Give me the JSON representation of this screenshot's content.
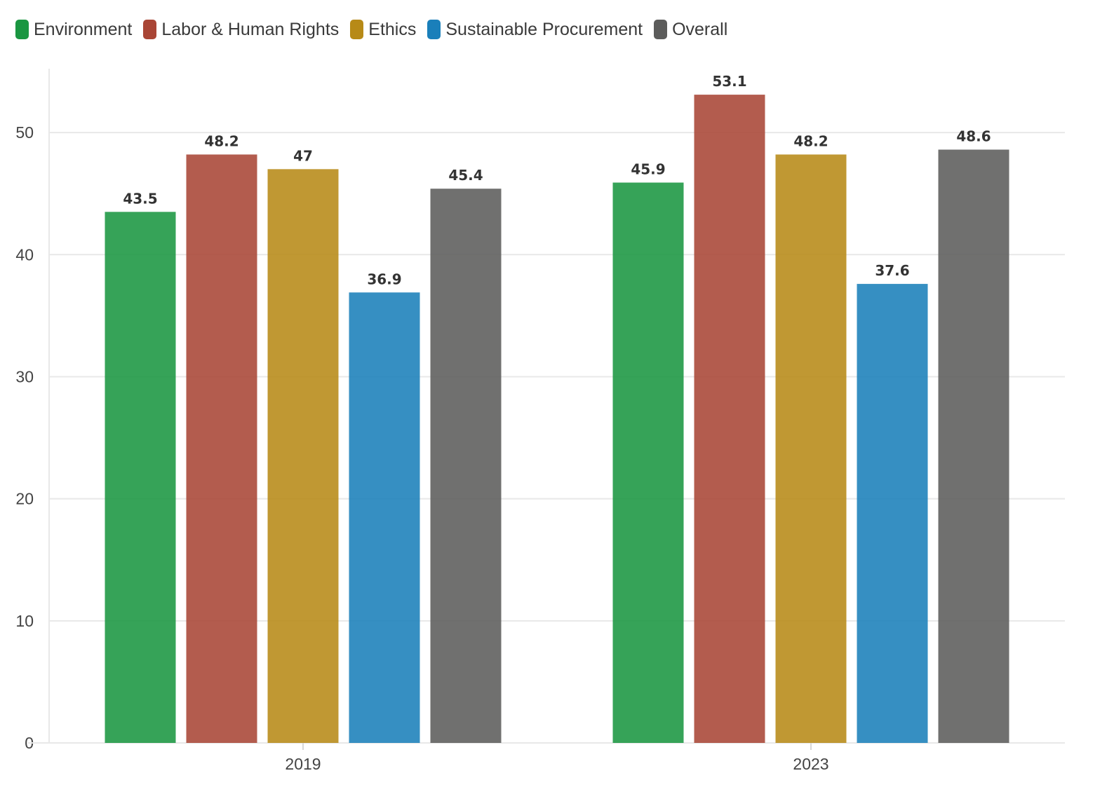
{
  "chart_data": {
    "type": "bar",
    "title": "",
    "xlabel": "",
    "ylabel": "",
    "categories": [
      "2019",
      "2023"
    ],
    "ylim": [
      0,
      55
    ],
    "yticks": [
      0,
      10,
      20,
      30,
      40,
      50
    ],
    "grid": true,
    "legend_position": "top-left",
    "series": [
      {
        "name": "Environment",
        "color": "#1a9641",
        "values": [
          43.5,
          45.9
        ],
        "labels": [
          "43.5",
          "45.9"
        ]
      },
      {
        "name": "Labor & Human Rights",
        "color": "#a94535",
        "values": [
          48.2,
          53.1
        ],
        "labels": [
          "48.2",
          "53.1"
        ]
      },
      {
        "name": "Ethics",
        "color": "#b78a17",
        "values": [
          47,
          48.2
        ],
        "labels": [
          "47",
          "48.2"
        ]
      },
      {
        "name": "Sustainable Procurement",
        "color": "#1a7fba",
        "values": [
          36.9,
          37.6
        ],
        "labels": [
          "36.9",
          "37.6"
        ]
      },
      {
        "name": "Overall",
        "color": "#5c5c5b",
        "values": [
          45.4,
          48.6
        ],
        "labels": [
          "45.4",
          "48.6"
        ]
      }
    ]
  }
}
